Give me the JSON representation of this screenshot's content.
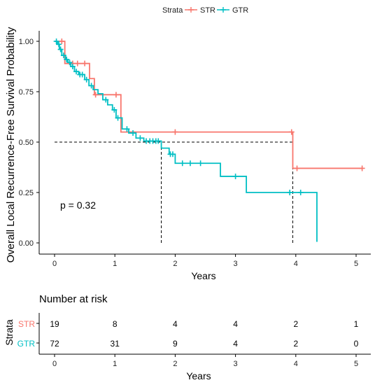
{
  "chart_data": [
    {
      "type": "line",
      "subtype": "kaplan-meier",
      "ylabel": "Overall Local Recurrence-Free Survival Probability",
      "xlabel": "Years",
      "xlim": [
        -0.2,
        5.3
      ],
      "ylim": [
        -0.05,
        1.05
      ],
      "x_ticks": [
        "0",
        "1",
        "2",
        "3",
        "4",
        "5"
      ],
      "y_ticks": [
        "0.00",
        "0.25",
        "0.50",
        "0.75",
        "1.00"
      ],
      "grid": false,
      "legend": {
        "title": "Strata",
        "position": "top",
        "entries": [
          "STR",
          "GTR"
        ]
      },
      "annotation": "p = 0.32",
      "median_line": {
        "y": 0.5,
        "x_end": 3.95,
        "drops": [
          1.77,
          3.95
        ]
      },
      "series": [
        {
          "name": "STR",
          "color": "#F8766D",
          "steps": [
            [
              0,
              1.0
            ],
            [
              0.17,
              0.89
            ],
            [
              0.58,
              0.815
            ],
            [
              0.66,
              0.735
            ],
            [
              1.1,
              0.55
            ],
            [
              3.95,
              0.37
            ],
            [
              5.1,
              0.37
            ]
          ],
          "censor_x": [
            0.12,
            0.3,
            0.38,
            0.5,
            0.68,
            1.02,
            2.0,
            3.93,
            4.02,
            5.1
          ]
        },
        {
          "name": "GTR",
          "color": "#00BFC4",
          "steps": [
            [
              0,
              1.0
            ],
            [
              0.05,
              0.985
            ],
            [
              0.08,
              0.96
            ],
            [
              0.12,
              0.93
            ],
            [
              0.18,
              0.91
            ],
            [
              0.22,
              0.895
            ],
            [
              0.27,
              0.875
            ],
            [
              0.33,
              0.85
            ],
            [
              0.4,
              0.835
            ],
            [
              0.5,
              0.81
            ],
            [
              0.57,
              0.78
            ],
            [
              0.64,
              0.76
            ],
            [
              0.72,
              0.74
            ],
            [
              0.8,
              0.71
            ],
            [
              0.88,
              0.685
            ],
            [
              0.96,
              0.66
            ],
            [
              1.02,
              0.62
            ],
            [
              1.12,
              0.565
            ],
            [
              1.23,
              0.545
            ],
            [
              1.35,
              0.52
            ],
            [
              1.48,
              0.505
            ],
            [
              1.77,
              0.47
            ],
            [
              1.9,
              0.44
            ],
            [
              2.0,
              0.395
            ],
            [
              2.75,
              0.33
            ],
            [
              3.18,
              0.25
            ],
            [
              4.35,
              0.005
            ]
          ],
          "censor_x": [
            0.03,
            0.07,
            0.1,
            0.15,
            0.2,
            0.25,
            0.3,
            0.36,
            0.42,
            0.46,
            0.53,
            0.61,
            0.85,
            0.99,
            1.05,
            1.2,
            1.3,
            1.42,
            1.52,
            1.58,
            1.63,
            1.68,
            1.72,
            1.92,
            1.96,
            2.12,
            2.25,
            2.42,
            3.0,
            3.9,
            4.08
          ]
        }
      ]
    },
    {
      "type": "table",
      "title": "Number at risk",
      "xlabel": "Years",
      "ylabel": "Strata",
      "x_ticks": [
        "0",
        "1",
        "2",
        "3",
        "4",
        "5"
      ],
      "rows": [
        {
          "label": "STR",
          "color": "#F8766D",
          "values": [
            "19",
            "8",
            "4",
            "4",
            "2",
            "1"
          ]
        },
        {
          "label": "GTR",
          "color": "#00BFC4",
          "values": [
            "72",
            "31",
            "9",
            "4",
            "2",
            "0"
          ]
        }
      ]
    }
  ]
}
